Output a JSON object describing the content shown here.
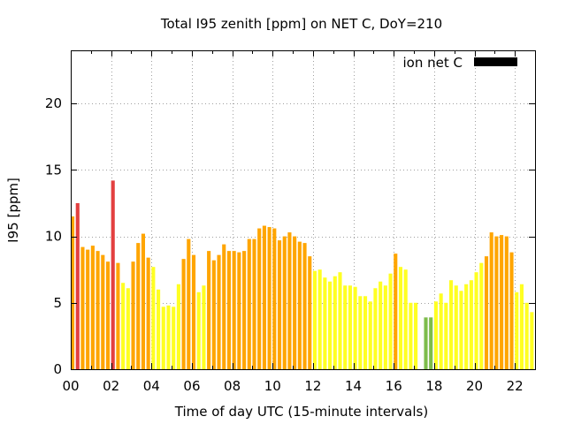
{
  "chart_data": {
    "type": "bar",
    "title": "Total I95 zenith [ppm] on NET C, DoY=210",
    "xlabel": "Time of day UTC (15-minute intervals)",
    "ylabel": "I95 [ppm]",
    "xlim": [
      0,
      23
    ],
    "ylim": [
      0,
      24
    ],
    "x_ticks": [
      "00",
      "02",
      "04",
      "06",
      "08",
      "10",
      "12",
      "14",
      "16",
      "18",
      "20",
      "22"
    ],
    "y_ticks": [
      0,
      5,
      10,
      15,
      20
    ],
    "grid": true,
    "legend": {
      "label": "ion net C",
      "color": "#000000",
      "position": "top-right"
    },
    "bar_width_hours": 0.18,
    "color_scale": {
      "yellow": "#ffff22",
      "orange": "#ffa500",
      "red": "#e34040",
      "green": "#7dbc4b"
    },
    "series": [
      {
        "values": [
          {
            "t": 0.0,
            "v": 11.5,
            "color": "orange"
          },
          {
            "t": 0.25,
            "v": 12.5,
            "color": "red"
          },
          {
            "t": 0.5,
            "v": 9.2,
            "color": "orange"
          },
          {
            "t": 0.75,
            "v": 9.0,
            "color": "orange"
          },
          {
            "t": 1.0,
            "v": 9.3,
            "color": "orange"
          },
          {
            "t": 1.25,
            "v": 8.9,
            "color": "orange"
          },
          {
            "t": 1.5,
            "v": 8.6,
            "color": "orange"
          },
          {
            "t": 1.75,
            "v": 8.1,
            "color": "orange"
          },
          {
            "t": 2.0,
            "v": 14.2,
            "color": "red"
          },
          {
            "t": 2.25,
            "v": 8.0,
            "color": "orange"
          },
          {
            "t": 2.5,
            "v": 6.5,
            "color": "yellow"
          },
          {
            "t": 2.75,
            "v": 6.1,
            "color": "yellow"
          },
          {
            "t": 3.0,
            "v": 8.1,
            "color": "orange"
          },
          {
            "t": 3.25,
            "v": 9.5,
            "color": "orange"
          },
          {
            "t": 3.5,
            "v": 10.2,
            "color": "orange"
          },
          {
            "t": 3.75,
            "v": 8.4,
            "color": "orange"
          },
          {
            "t": 4.0,
            "v": 7.7,
            "color": "yellow"
          },
          {
            "t": 4.25,
            "v": 6.0,
            "color": "yellow"
          },
          {
            "t": 4.5,
            "v": 4.7,
            "color": "yellow"
          },
          {
            "t": 4.75,
            "v": 4.8,
            "color": "yellow"
          },
          {
            "t": 5.0,
            "v": 4.7,
            "color": "yellow"
          },
          {
            "t": 5.25,
            "v": 6.4,
            "color": "yellow"
          },
          {
            "t": 5.5,
            "v": 8.3,
            "color": "orange"
          },
          {
            "t": 5.75,
            "v": 9.8,
            "color": "orange"
          },
          {
            "t": 6.0,
            "v": 8.6,
            "color": "orange"
          },
          {
            "t": 6.25,
            "v": 5.8,
            "color": "yellow"
          },
          {
            "t": 6.5,
            "v": 6.3,
            "color": "yellow"
          },
          {
            "t": 6.75,
            "v": 8.9,
            "color": "orange"
          },
          {
            "t": 7.0,
            "v": 8.2,
            "color": "orange"
          },
          {
            "t": 7.25,
            "v": 8.6,
            "color": "orange"
          },
          {
            "t": 7.5,
            "v": 9.4,
            "color": "orange"
          },
          {
            "t": 7.75,
            "v": 8.9,
            "color": "orange"
          },
          {
            "t": 8.0,
            "v": 8.9,
            "color": "orange"
          },
          {
            "t": 8.25,
            "v": 8.8,
            "color": "orange"
          },
          {
            "t": 8.5,
            "v": 8.9,
            "color": "orange"
          },
          {
            "t": 8.75,
            "v": 9.8,
            "color": "orange"
          },
          {
            "t": 9.0,
            "v": 9.8,
            "color": "orange"
          },
          {
            "t": 9.25,
            "v": 10.6,
            "color": "orange"
          },
          {
            "t": 9.5,
            "v": 10.8,
            "color": "orange"
          },
          {
            "t": 9.75,
            "v": 10.7,
            "color": "orange"
          },
          {
            "t": 10.0,
            "v": 10.6,
            "color": "orange"
          },
          {
            "t": 10.25,
            "v": 9.7,
            "color": "orange"
          },
          {
            "t": 10.5,
            "v": 10.0,
            "color": "orange"
          },
          {
            "t": 10.75,
            "v": 10.3,
            "color": "orange"
          },
          {
            "t": 11.0,
            "v": 10.0,
            "color": "orange"
          },
          {
            "t": 11.25,
            "v": 9.6,
            "color": "orange"
          },
          {
            "t": 11.5,
            "v": 9.5,
            "color": "orange"
          },
          {
            "t": 11.75,
            "v": 8.5,
            "color": "orange"
          },
          {
            "t": 12.0,
            "v": 7.4,
            "color": "yellow"
          },
          {
            "t": 12.25,
            "v": 7.5,
            "color": "yellow"
          },
          {
            "t": 12.5,
            "v": 6.9,
            "color": "yellow"
          },
          {
            "t": 12.75,
            "v": 6.6,
            "color": "yellow"
          },
          {
            "t": 13.0,
            "v": 7.0,
            "color": "yellow"
          },
          {
            "t": 13.25,
            "v": 7.3,
            "color": "yellow"
          },
          {
            "t": 13.5,
            "v": 6.3,
            "color": "yellow"
          },
          {
            "t": 13.75,
            "v": 6.3,
            "color": "yellow"
          },
          {
            "t": 14.0,
            "v": 6.2,
            "color": "yellow"
          },
          {
            "t": 14.25,
            "v": 5.5,
            "color": "yellow"
          },
          {
            "t": 14.5,
            "v": 5.5,
            "color": "yellow"
          },
          {
            "t": 14.75,
            "v": 5.1,
            "color": "yellow"
          },
          {
            "t": 15.0,
            "v": 6.1,
            "color": "yellow"
          },
          {
            "t": 15.25,
            "v": 6.6,
            "color": "yellow"
          },
          {
            "t": 15.5,
            "v": 6.3,
            "color": "yellow"
          },
          {
            "t": 15.75,
            "v": 7.2,
            "color": "yellow"
          },
          {
            "t": 16.0,
            "v": 8.7,
            "color": "orange"
          },
          {
            "t": 16.25,
            "v": 7.7,
            "color": "yellow"
          },
          {
            "t": 16.5,
            "v": 7.5,
            "color": "yellow"
          },
          {
            "t": 16.75,
            "v": 5.0,
            "color": "yellow"
          },
          {
            "t": 17.0,
            "v": 5.0,
            "color": "yellow"
          },
          {
            "t": 17.5,
            "v": 3.9,
            "color": "green"
          },
          {
            "t": 17.75,
            "v": 3.9,
            "color": "green"
          },
          {
            "t": 18.0,
            "v": 5.1,
            "color": "yellow"
          },
          {
            "t": 18.25,
            "v": 5.7,
            "color": "yellow"
          },
          {
            "t": 18.5,
            "v": 5.0,
            "color": "yellow"
          },
          {
            "t": 18.75,
            "v": 6.7,
            "color": "yellow"
          },
          {
            "t": 19.0,
            "v": 6.3,
            "color": "yellow"
          },
          {
            "t": 19.25,
            "v": 5.9,
            "color": "yellow"
          },
          {
            "t": 19.5,
            "v": 6.4,
            "color": "yellow"
          },
          {
            "t": 19.75,
            "v": 6.7,
            "color": "yellow"
          },
          {
            "t": 20.0,
            "v": 7.3,
            "color": "yellow"
          },
          {
            "t": 20.25,
            "v": 8.0,
            "color": "yellow"
          },
          {
            "t": 20.5,
            "v": 8.5,
            "color": "orange"
          },
          {
            "t": 20.75,
            "v": 10.3,
            "color": "orange"
          },
          {
            "t": 21.0,
            "v": 10.0,
            "color": "orange"
          },
          {
            "t": 21.25,
            "v": 10.1,
            "color": "orange"
          },
          {
            "t": 21.5,
            "v": 10.0,
            "color": "orange"
          },
          {
            "t": 21.75,
            "v": 8.8,
            "color": "orange"
          },
          {
            "t": 22.0,
            "v": 5.8,
            "color": "yellow"
          },
          {
            "t": 22.25,
            "v": 6.4,
            "color": "yellow"
          },
          {
            "t": 22.5,
            "v": 5.0,
            "color": "yellow"
          },
          {
            "t": 22.75,
            "v": 4.3,
            "color": "yellow"
          }
        ]
      }
    ]
  }
}
